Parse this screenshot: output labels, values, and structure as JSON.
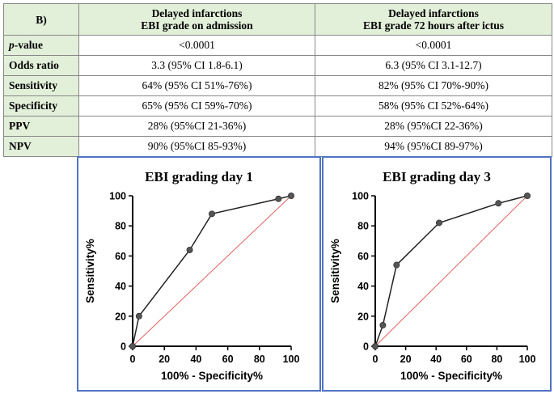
{
  "table": {
    "corner": "B)",
    "headers": [
      [
        "Delayed infarctions",
        "EBI grade on admission"
      ],
      [
        "Delayed infarctions",
        "EBI grade 72 hours after ictus"
      ]
    ],
    "rows": [
      {
        "label_prefix": "p",
        "label": "-value",
        "values": [
          "<0.0001",
          "<0.0001"
        ]
      },
      {
        "label": "Odds ratio",
        "values": [
          "3.3 (95% CI 1.8-6.1)",
          "6.3 (95% CI 3.1-12.7)"
        ]
      },
      {
        "label": "Sensitivity",
        "values": [
          "64% (95% CI 51%-76%)",
          "82% (95% CI 70%-90%)"
        ]
      },
      {
        "label": "Specificity",
        "values": [
          "65% (95% CI 59%-70%)",
          "58% (95% CI 52%-64%)"
        ]
      },
      {
        "label": "PPV",
        "values": [
          "28% (95%CI 21-36%)",
          "28% (95%CI 22-36%)"
        ]
      },
      {
        "label": "NPV",
        "values": [
          "90% (95%CI 85-93%)",
          "94% (95%CI 89-97%)"
        ]
      }
    ]
  },
  "chart_data": [
    {
      "type": "line",
      "title": "EBI grading day 1",
      "xlabel": "100% - Specificity%",
      "ylabel": "Sensitivity%",
      "xlim": [
        0,
        100
      ],
      "ylim": [
        0,
        100
      ],
      "xticks": [
        "0",
        "20",
        "40",
        "60",
        "80",
        "100"
      ],
      "yticks": [
        "0",
        "20",
        "40",
        "60",
        "80",
        "100"
      ],
      "series": [
        {
          "name": "ROC",
          "color": "#222222",
          "x": [
            0,
            4,
            36,
            50,
            92,
            100
          ],
          "y": [
            0,
            20,
            64,
            88,
            98,
            100
          ]
        },
        {
          "name": "Reference",
          "color": "#e06060",
          "x": [
            0,
            100
          ],
          "y": [
            0,
            100
          ]
        }
      ]
    },
    {
      "type": "line",
      "title": "EBI grading day 3",
      "xlabel": "100% - Specificity%",
      "ylabel": "Sensitivity%",
      "xlim": [
        0,
        100
      ],
      "ylim": [
        0,
        100
      ],
      "xticks": [
        "0",
        "20",
        "40",
        "60",
        "80",
        "100"
      ],
      "yticks": [
        "0",
        "20",
        "40",
        "60",
        "80",
        "100"
      ],
      "series": [
        {
          "name": "ROC",
          "color": "#222222",
          "x": [
            0,
            5,
            14,
            42,
            81,
            100
          ],
          "y": [
            0,
            14,
            54,
            82,
            95,
            100
          ]
        },
        {
          "name": "Reference",
          "color": "#e06060",
          "x": [
            0,
            100
          ],
          "y": [
            0,
            100
          ]
        }
      ]
    }
  ]
}
